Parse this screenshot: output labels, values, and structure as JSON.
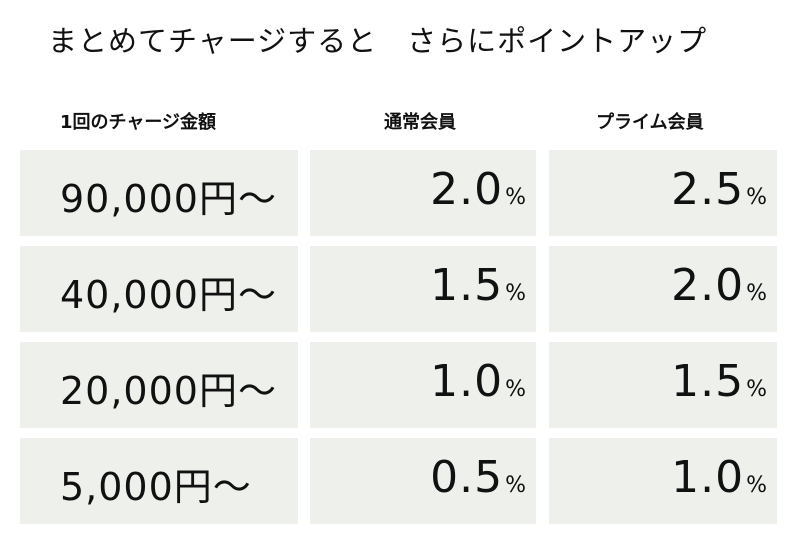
{
  "title": "まとめてチャージすると　さらにポイントアップ",
  "headers": {
    "charge_amount": "1回のチャージ金額",
    "regular_member": "通常会員",
    "prime_member": "プライム会員"
  },
  "percent_sign": "%",
  "rows": [
    {
      "amount": "90,000円～",
      "regular": "2.0",
      "prime": "2.5"
    },
    {
      "amount": "40,000円～",
      "regular": "1.5",
      "prime": "2.0"
    },
    {
      "amount": "20,000円～",
      "regular": "1.0",
      "prime": "1.5"
    },
    {
      "amount": "5,000円～",
      "regular": "0.5",
      "prime": "1.0"
    }
  ],
  "colors": {
    "cell_background": "#eef0eb",
    "text": "#111111",
    "page_background": "#ffffff"
  }
}
